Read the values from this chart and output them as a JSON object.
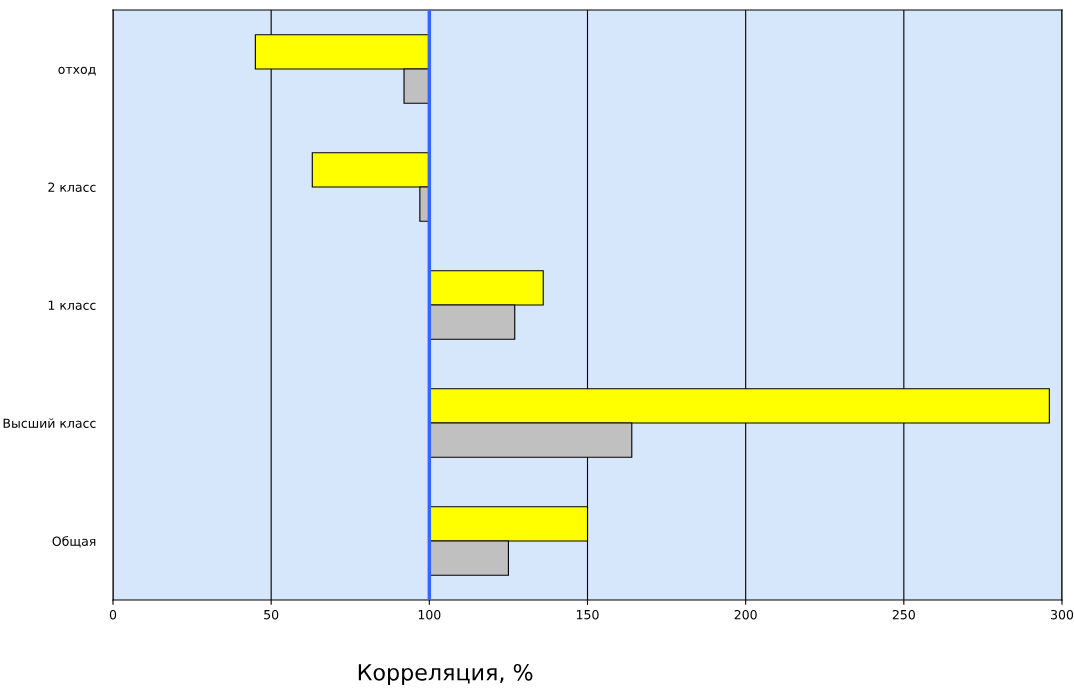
{
  "chart_data": {
    "type": "bar",
    "orientation": "horizontal",
    "xlabel": "Корреляция, %",
    "categories": [
      "отход",
      "2 класс",
      "1 класс",
      "Высший класс",
      "Общая"
    ],
    "series": [
      {
        "color": "#ffff00",
        "base": [
          100,
          100,
          100,
          100,
          100
        ],
        "values": [
          -55,
          -37,
          36,
          196,
          50
        ]
      },
      {
        "color": "#c0c0c0",
        "base": [
          100,
          100,
          100,
          100,
          100
        ],
        "values": [
          -8,
          -3,
          27,
          64,
          25
        ]
      }
    ],
    "xlim": [
      0,
      300
    ],
    "xticks": [
      0,
      50,
      100,
      150,
      200,
      250,
      300
    ],
    "ref_lines": [
      {
        "axis": "x",
        "value": 100,
        "color": "#3366ff"
      }
    ],
    "grid": "x"
  }
}
